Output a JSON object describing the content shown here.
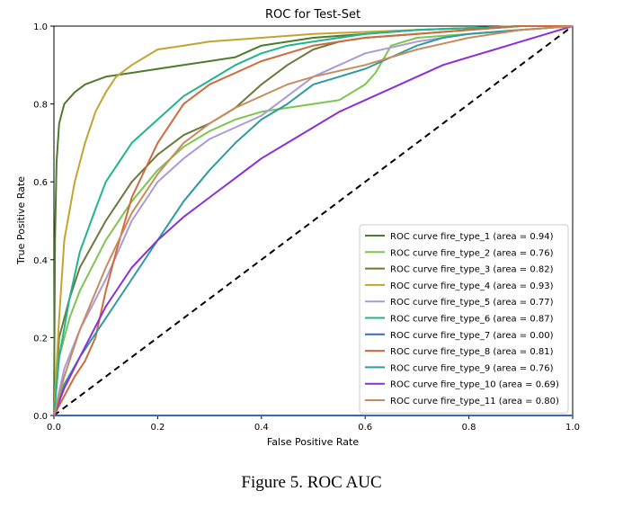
{
  "figure_caption": "Figure 5. ROC AUC",
  "chart_data": {
    "type": "line",
    "title": "ROC for Test-Set",
    "xlabel": "False Positive Rate",
    "ylabel": "True Positive Rate",
    "xlim": [
      0.0,
      1.0
    ],
    "ylim": [
      0.0,
      1.0
    ],
    "xticks": [
      "0.0",
      "0.2",
      "0.4",
      "0.6",
      "0.8",
      "1.0"
    ],
    "yticks": [
      "0.0",
      "0.2",
      "0.4",
      "0.6",
      "0.8",
      "1.0"
    ],
    "grid": false,
    "legend_position": "lower-right",
    "diagonal": {
      "x": [
        0,
        1
      ],
      "y": [
        0,
        1
      ],
      "style": "dashed",
      "color": "#000000"
    },
    "series": [
      {
        "name": "ROC curve fire_type_1 (area = 0.94)",
        "color": "#4f7b2d",
        "x": [
          0,
          0.002,
          0.005,
          0.01,
          0.02,
          0.04,
          0.06,
          0.08,
          0.1,
          0.15,
          0.2,
          0.25,
          0.3,
          0.35,
          0.4,
          0.5,
          0.6,
          0.7,
          0.8,
          0.9,
          1.0
        ],
        "y": [
          0,
          0.45,
          0.65,
          0.75,
          0.8,
          0.83,
          0.85,
          0.86,
          0.87,
          0.88,
          0.89,
          0.9,
          0.91,
          0.92,
          0.95,
          0.97,
          0.98,
          0.99,
          0.995,
          1.0,
          1.0
        ]
      },
      {
        "name": "ROC curve fire_type_2 (area = 0.76)",
        "color": "#7cc54e",
        "x": [
          0,
          0.01,
          0.03,
          0.05,
          0.1,
          0.15,
          0.2,
          0.25,
          0.3,
          0.35,
          0.4,
          0.45,
          0.5,
          0.55,
          0.6,
          0.62,
          0.65,
          0.7,
          0.8,
          0.9,
          1.0
        ],
        "y": [
          0,
          0.15,
          0.25,
          0.32,
          0.45,
          0.55,
          0.63,
          0.69,
          0.73,
          0.76,
          0.78,
          0.79,
          0.8,
          0.81,
          0.85,
          0.88,
          0.95,
          0.97,
          0.98,
          0.99,
          1.0
        ]
      },
      {
        "name": "ROC curve fire_type_3 (area = 0.82)",
        "color": "#6b7a3a",
        "x": [
          0,
          0.01,
          0.03,
          0.05,
          0.1,
          0.15,
          0.2,
          0.25,
          0.3,
          0.35,
          0.4,
          0.45,
          0.5,
          0.55,
          0.6,
          0.7,
          0.8,
          0.9,
          1.0
        ],
        "y": [
          0,
          0.2,
          0.3,
          0.38,
          0.5,
          0.6,
          0.67,
          0.72,
          0.75,
          0.79,
          0.85,
          0.9,
          0.94,
          0.96,
          0.97,
          0.98,
          0.99,
          1.0,
          1.0
        ]
      },
      {
        "name": "ROC curve fire_type_4 (area = 0.93)",
        "color": "#c2a431",
        "x": [
          0,
          0.01,
          0.02,
          0.04,
          0.06,
          0.08,
          0.1,
          0.12,
          0.15,
          0.2,
          0.25,
          0.3,
          0.4,
          0.5,
          0.6,
          0.7,
          0.8,
          0.9,
          1.0
        ],
        "y": [
          0,
          0.25,
          0.45,
          0.6,
          0.7,
          0.78,
          0.83,
          0.87,
          0.9,
          0.94,
          0.95,
          0.96,
          0.97,
          0.98,
          0.985,
          0.99,
          0.995,
          1.0,
          1.0
        ]
      },
      {
        "name": "ROC curve fire_type_5 (area = 0.77)",
        "color": "#a99ad8",
        "x": [
          0,
          0.02,
          0.05,
          0.1,
          0.15,
          0.2,
          0.25,
          0.3,
          0.35,
          0.4,
          0.45,
          0.5,
          0.55,
          0.6,
          0.7,
          0.8,
          0.9,
          1.0
        ],
        "y": [
          0,
          0.12,
          0.22,
          0.35,
          0.5,
          0.6,
          0.66,
          0.71,
          0.74,
          0.77,
          0.82,
          0.87,
          0.9,
          0.93,
          0.96,
          0.98,
          0.99,
          1.0
        ]
      },
      {
        "name": "ROC curve fire_type_6 (area = 0.87)",
        "color": "#22b38f",
        "x": [
          0,
          0.01,
          0.03,
          0.05,
          0.08,
          0.1,
          0.15,
          0.2,
          0.25,
          0.3,
          0.35,
          0.4,
          0.45,
          0.5,
          0.6,
          0.7,
          0.8,
          0.9,
          1.0
        ],
        "y": [
          0,
          0.15,
          0.3,
          0.42,
          0.53,
          0.6,
          0.7,
          0.76,
          0.82,
          0.86,
          0.9,
          0.93,
          0.95,
          0.96,
          0.98,
          0.99,
          0.995,
          1.0,
          1.0
        ]
      },
      {
        "name": "ROC curve fire_type_7 (area = 0.00)",
        "color": "#3a67c4",
        "x": [
          0,
          1.0
        ],
        "y": [
          0,
          0
        ]
      },
      {
        "name": "ROC curve fire_type_8 (area = 0.81)",
        "color": "#cf6a3d",
        "x": [
          0,
          0.02,
          0.04,
          0.06,
          0.08,
          0.1,
          0.12,
          0.15,
          0.2,
          0.25,
          0.3,
          0.35,
          0.4,
          0.45,
          0.5,
          0.6,
          0.7,
          0.8,
          0.9,
          1.0
        ],
        "y": [
          0,
          0.05,
          0.1,
          0.14,
          0.2,
          0.32,
          0.42,
          0.56,
          0.7,
          0.8,
          0.85,
          0.88,
          0.91,
          0.93,
          0.95,
          0.97,
          0.98,
          0.99,
          1.0,
          1.0
        ]
      },
      {
        "name": "ROC curve fire_type_9 (area = 0.76)",
        "color": "#2e9aa3",
        "x": [
          0,
          0.02,
          0.05,
          0.1,
          0.15,
          0.2,
          0.25,
          0.3,
          0.35,
          0.4,
          0.45,
          0.5,
          0.55,
          0.6,
          0.65,
          0.7,
          0.75,
          0.8,
          0.9,
          1.0
        ],
        "y": [
          0,
          0.08,
          0.15,
          0.25,
          0.35,
          0.45,
          0.55,
          0.63,
          0.7,
          0.76,
          0.8,
          0.85,
          0.87,
          0.89,
          0.92,
          0.95,
          0.97,
          0.98,
          0.99,
          1.0
        ]
      },
      {
        "name": "ROC curve fire_type_10 (area = 0.69)",
        "color": "#8b2fd6",
        "x": [
          0,
          0.02,
          0.05,
          0.1,
          0.15,
          0.2,
          0.25,
          0.3,
          0.35,
          0.4,
          0.45,
          0.5,
          0.55,
          0.6,
          0.65,
          0.7,
          0.75,
          0.8,
          0.85,
          0.9,
          0.95,
          1.0
        ],
        "y": [
          0,
          0.07,
          0.15,
          0.28,
          0.38,
          0.45,
          0.51,
          0.56,
          0.61,
          0.66,
          0.7,
          0.74,
          0.78,
          0.81,
          0.84,
          0.87,
          0.9,
          0.92,
          0.94,
          0.96,
          0.98,
          1.0
        ]
      },
      {
        "name": "ROC curve fire_type_11 (area = 0.80)",
        "color": "#c98a5c",
        "x": [
          0,
          0.02,
          0.05,
          0.1,
          0.15,
          0.2,
          0.25,
          0.3,
          0.35,
          0.4,
          0.45,
          0.5,
          0.6,
          0.7,
          0.8,
          0.9,
          1.0
        ],
        "y": [
          0,
          0.1,
          0.22,
          0.38,
          0.52,
          0.62,
          0.7,
          0.75,
          0.79,
          0.82,
          0.85,
          0.87,
          0.9,
          0.94,
          0.97,
          0.99,
          1.0
        ]
      }
    ]
  }
}
